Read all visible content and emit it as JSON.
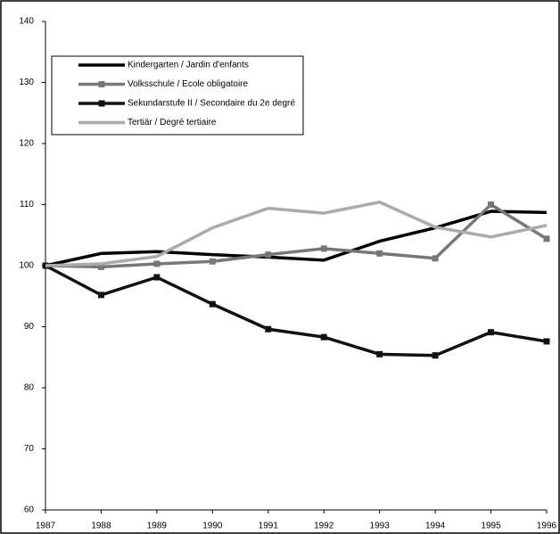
{
  "chart_data": {
    "type": "line",
    "x": [
      1987,
      1988,
      1989,
      1990,
      1991,
      1992,
      1993,
      1994,
      1995,
      1996
    ],
    "series": [
      {
        "name": "Kindergarten / Jardin d'enfants",
        "color": "#000000",
        "markers": false,
        "values": [
          100,
          102,
          102.3,
          101.8,
          101.4,
          100.9,
          104,
          106.2,
          108.9,
          108.7
        ]
      },
      {
        "name": "Volksschule / Ecole obligatoire",
        "color": "#777777",
        "markers": true,
        "values": [
          100,
          99.8,
          100.3,
          100.7,
          101.8,
          102.8,
          102,
          101.2,
          110,
          104.4
        ]
      },
      {
        "name": "Sekundarstufe II / Secondaire du 2e degré",
        "color": "#111111",
        "markers": true,
        "values": [
          100,
          95.2,
          98.1,
          93.7,
          89.6,
          88.3,
          85.5,
          85.3,
          89.1,
          87.6
        ]
      },
      {
        "name": "Tertiär / Degré tertiaire",
        "color": "#aaaaaa",
        "markers": false,
        "values": [
          100,
          100.3,
          101.5,
          106.2,
          109.4,
          108.6,
          110.4,
          106.3,
          104.7,
          106.6
        ]
      }
    ],
    "xlim": [
      1987,
      1996
    ],
    "xticks": [
      1987,
      1988,
      1989,
      1990,
      1991,
      1992,
      1993,
      1994,
      1995,
      1996
    ],
    "ylim": [
      60,
      140
    ],
    "yticks": [
      60,
      70,
      80,
      90,
      100,
      110,
      120,
      130,
      140
    ],
    "grid": false,
    "legend": "top-left"
  }
}
